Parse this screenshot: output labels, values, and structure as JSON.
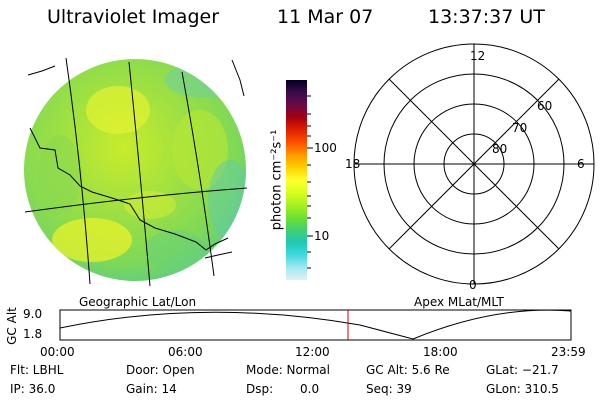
{
  "header": {
    "instrument": "Ultraviolet Imager",
    "date": "11 Mar 07",
    "time": "13:37:37 UT"
  },
  "colorbar": {
    "unit_label": "photon cm⁻²s⁻¹",
    "scale": "log",
    "ticks": [
      "100",
      "10"
    ],
    "colors": [
      "#000020",
      "#3a0a4a",
      "#6a0a4a",
      "#a80010",
      "#e02000",
      "#ff5000",
      "#ff9a00",
      "#ffd000",
      "#ffff30",
      "#d8ff20",
      "#a8f020",
      "#70e030",
      "#40d070",
      "#20c8b0",
      "#40d8e0",
      "#a0e8f0",
      "#e0f0f8"
    ]
  },
  "left_panel": {
    "caption": "Geographic Lat/Lon"
  },
  "right_panel": {
    "caption": "Apex MLat/MLT",
    "mlt_labels": {
      "top": "12",
      "right": "6",
      "bottom": "0",
      "left": "18"
    },
    "lat_labels": [
      "60",
      "70",
      "80"
    ]
  },
  "altitude_strip": {
    "ylabel": "GC Alt",
    "yticks": [
      "9.0",
      "1.8"
    ],
    "xticks": [
      "00:00",
      "06:00",
      "12:00",
      "18:00",
      "23:59"
    ],
    "current_time_color": "#cc0000"
  },
  "info": {
    "filter": "Flt: LBHL",
    "door": "Door: Open",
    "mode": "Mode: Normal",
    "gc_alt": "GC Alt: 5.6 Re",
    "glat": "GLat: −21.7",
    "ip": "IP: 36.0",
    "gain": "Gain: 14",
    "dsp_label": "Dsp:",
    "dsp_value": "0.0",
    "seq": "Seq: 39",
    "glon": "GLon: 310.5"
  }
}
